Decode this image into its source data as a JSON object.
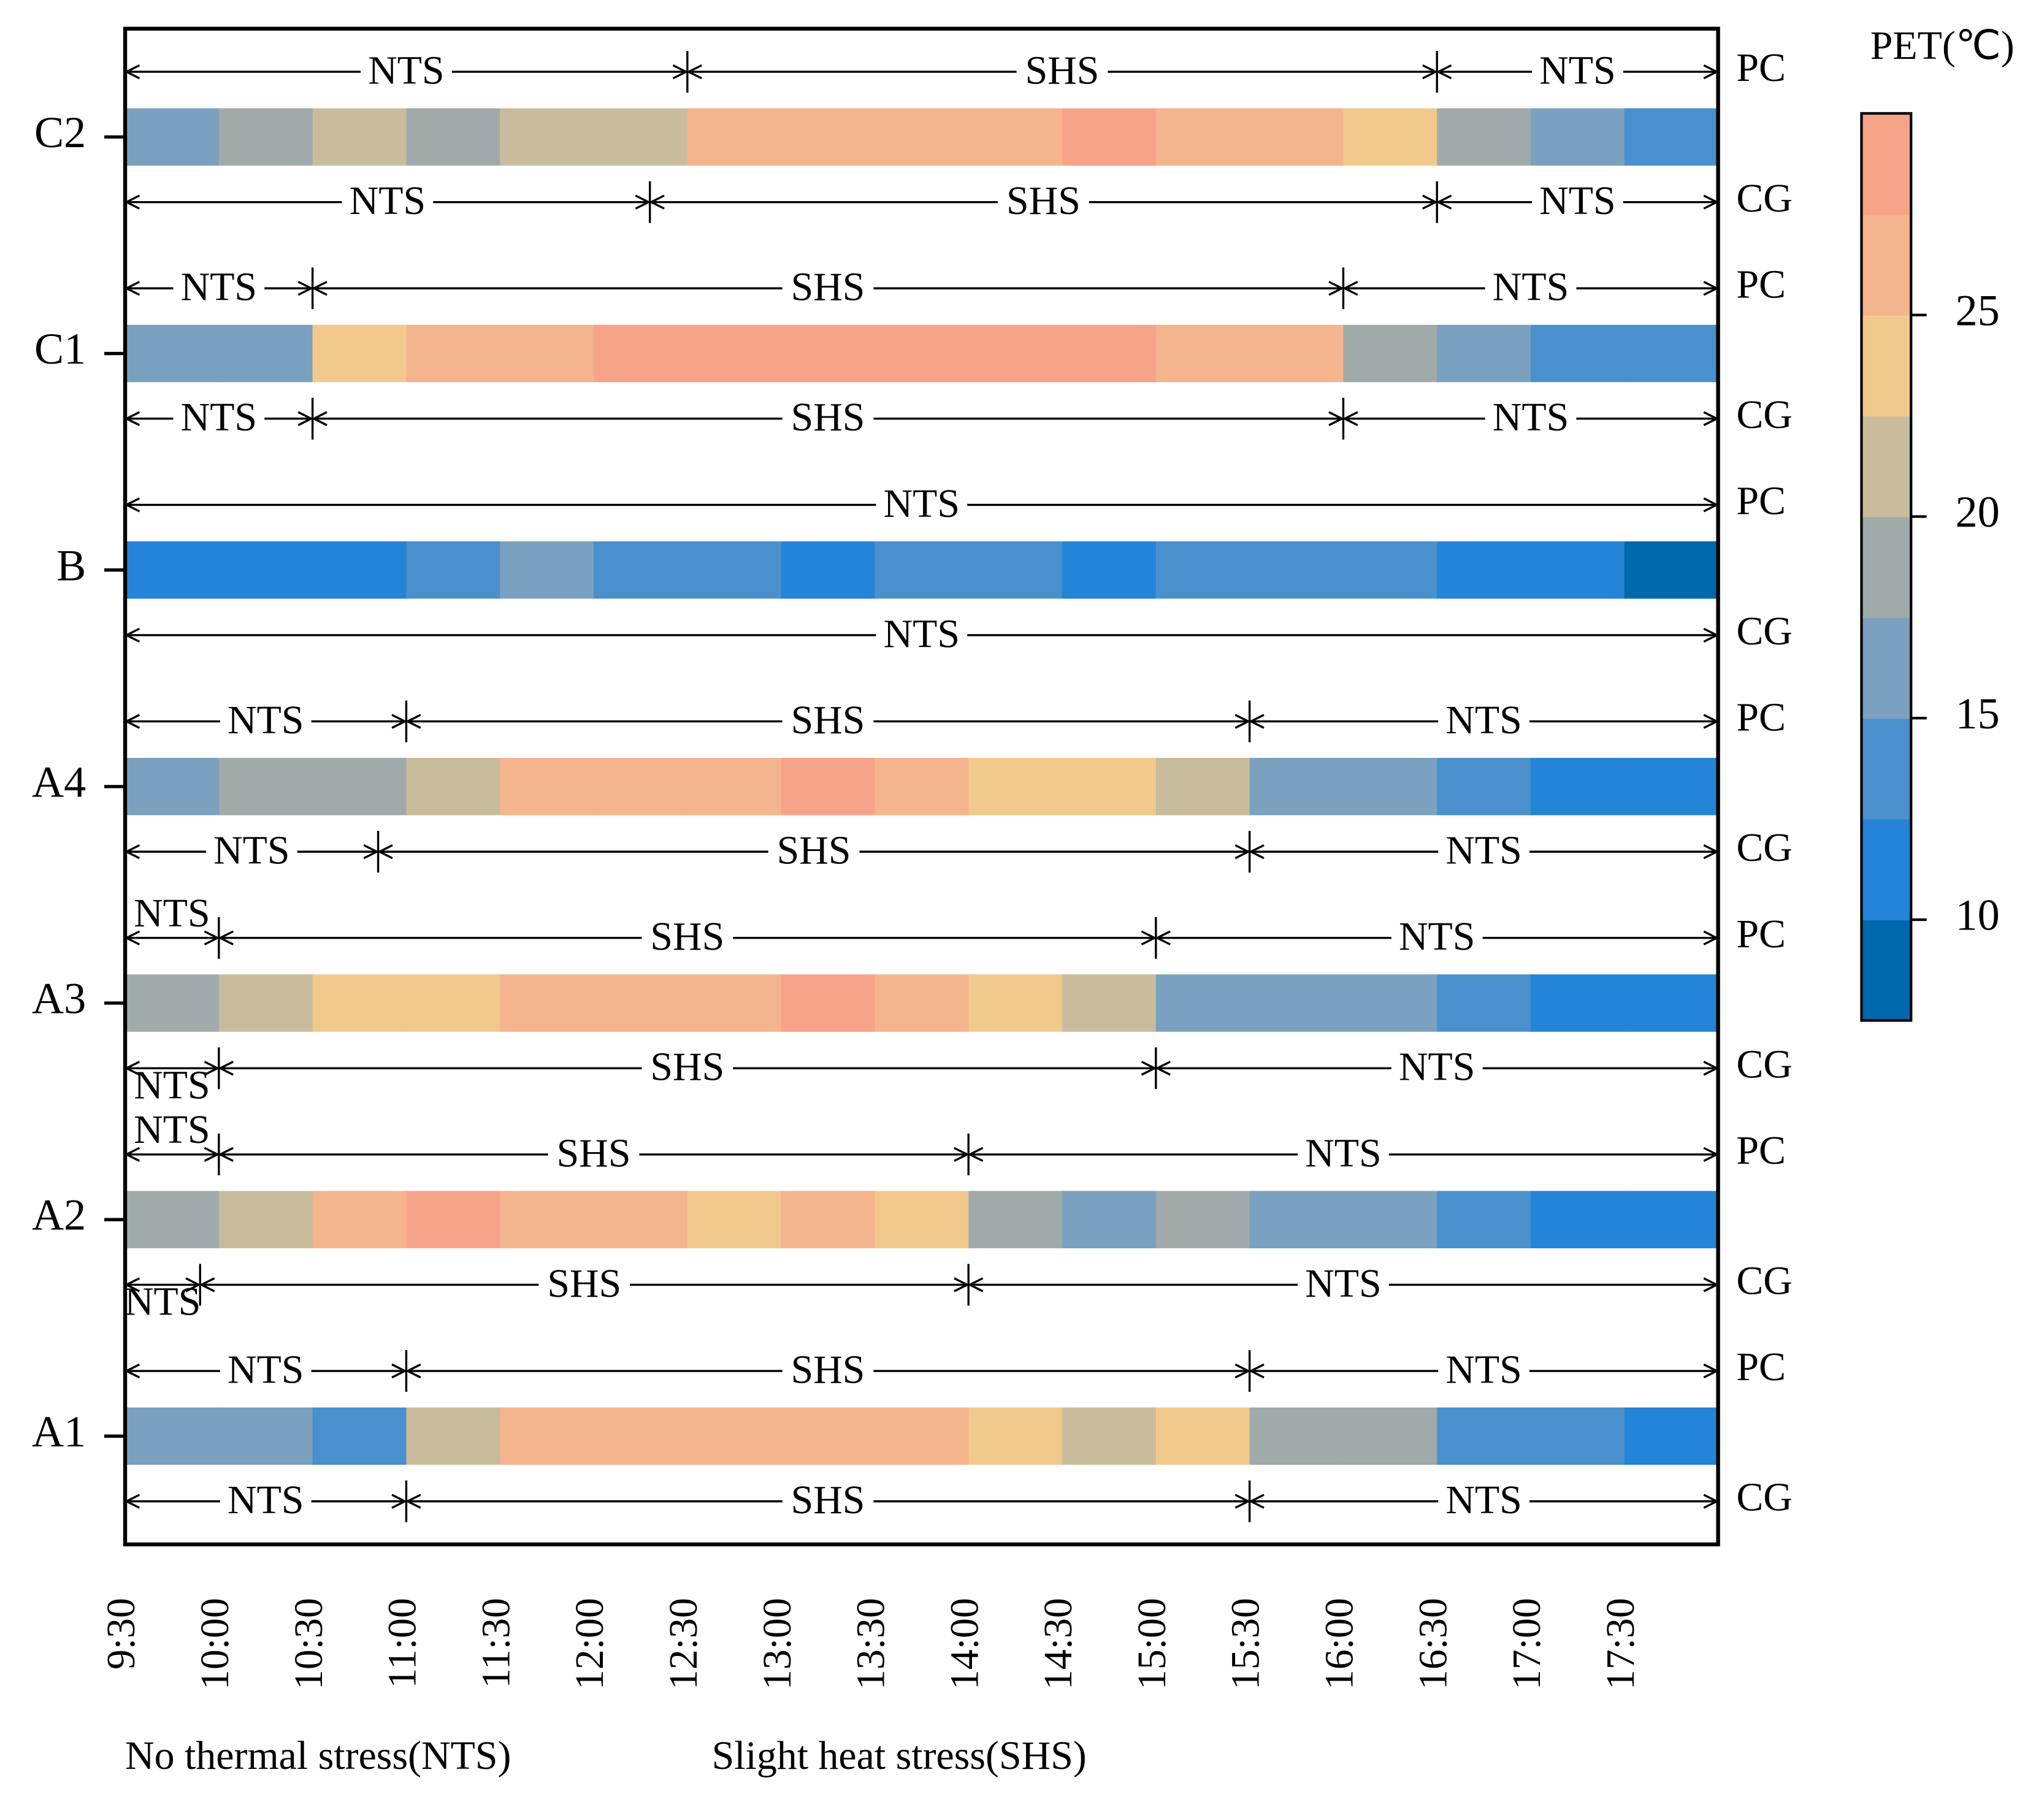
{
  "chart_data": {
    "type": "heatmap",
    "xlim": [
      9.5,
      18
    ],
    "xticks": [
      {
        "value": 9.5,
        "label": "9:30"
      },
      {
        "value": 10,
        "label": "10:00"
      },
      {
        "value": 10.5,
        "label": "10:30"
      },
      {
        "value": 11,
        "label": "11:00"
      },
      {
        "value": 11.5,
        "label": "11:30"
      },
      {
        "value": 12,
        "label": "12:00"
      },
      {
        "value": 12.5,
        "label": "12:30"
      },
      {
        "value": 13,
        "label": "13:00"
      },
      {
        "value": 13.5,
        "label": "13:30"
      },
      {
        "value": 14,
        "label": "14:00"
      },
      {
        "value": 14.5,
        "label": "14:30"
      },
      {
        "value": 15,
        "label": "15:00"
      },
      {
        "value": 15.5,
        "label": "15:30"
      },
      {
        "value": 16,
        "label": "16:00"
      },
      {
        "value": 16.5,
        "label": "16:30"
      },
      {
        "value": 17,
        "label": "17:00"
      },
      {
        "value": 17.5,
        "label": "17:30"
      }
    ],
    "bins": [
      9.5,
      10,
      10.5,
      11,
      11.5,
      12,
      12.5,
      13,
      13.5,
      14,
      14.5,
      15,
      15.5,
      16,
      16.5,
      17,
      17.5,
      18
    ],
    "rows": [
      {
        "name": "C2",
        "values": [
          16.25,
          18.75,
          21.25,
          18.75,
          21.25,
          21.25,
          26.25,
          26.25,
          26.25,
          26.25,
          28.75,
          26.25,
          26.25,
          23.75,
          18.75,
          16.25,
          13.75
        ],
        "bands": [
          {
            "name": "PC",
            "segments": [
              {
                "label": "NTS",
                "start": 9.5,
                "end": 12.5
              },
              {
                "label": "SHS",
                "start": 12.5,
                "end": 16.5
              },
              {
                "label": "NTS",
                "start": 16.5,
                "end": 18
              }
            ]
          },
          {
            "name": "CG",
            "segments": [
              {
                "label": "NTS",
                "start": 9.5,
                "end": 12.3
              },
              {
                "label": "SHS",
                "start": 12.3,
                "end": 16.5
              },
              {
                "label": "NTS",
                "start": 16.5,
                "end": 18
              }
            ]
          }
        ]
      },
      {
        "name": "C1",
        "values": [
          16.25,
          16.25,
          23.75,
          26.25,
          26.25,
          28.75,
          28.75,
          28.75,
          28.75,
          28.75,
          28.75,
          26.25,
          26.25,
          18.75,
          16.25,
          13.75,
          13.75
        ],
        "bands": [
          {
            "name": "PC",
            "segments": [
              {
                "label": "NTS",
                "start": 9.5,
                "end": 10.5
              },
              {
                "label": "SHS",
                "start": 10.5,
                "end": 16
              },
              {
                "label": "NTS",
                "start": 16,
                "end": 18
              }
            ]
          },
          {
            "name": "CG",
            "segments": [
              {
                "label": "NTS",
                "start": 9.5,
                "end": 10.5
              },
              {
                "label": "SHS",
                "start": 10.5,
                "end": 16
              },
              {
                "label": "NTS",
                "start": 16,
                "end": 18
              }
            ]
          }
        ]
      },
      {
        "name": "B",
        "values": [
          11.25,
          11.25,
          11.25,
          13.75,
          16.25,
          13.75,
          13.75,
          11.25,
          13.75,
          13.75,
          11.25,
          13.75,
          13.75,
          13.75,
          11.25,
          11.25,
          8.75
        ],
        "bands": [
          {
            "name": "PC",
            "segments": [
              {
                "label": "NTS",
                "start": 9.5,
                "end": 18
              }
            ]
          },
          {
            "name": "CG",
            "segments": [
              {
                "label": "NTS",
                "start": 9.5,
                "end": 18
              }
            ]
          }
        ]
      },
      {
        "name": "A4",
        "values": [
          16.25,
          18.75,
          18.75,
          21.25,
          26.25,
          26.25,
          26.25,
          28.75,
          26.25,
          23.75,
          23.75,
          21.25,
          16.25,
          16.25,
          13.75,
          11.25,
          11.25
        ],
        "bands": [
          {
            "name": "PC",
            "segments": [
              {
                "label": "NTS",
                "start": 9.5,
                "end": 11
              },
              {
                "label": "SHS",
                "start": 11,
                "end": 15.5
              },
              {
                "label": "NTS",
                "start": 15.5,
                "end": 18
              }
            ]
          },
          {
            "name": "CG",
            "segments": [
              {
                "label": "NTS",
                "start": 9.5,
                "end": 10.85
              },
              {
                "label": "SHS",
                "start": 10.85,
                "end": 15.5
              },
              {
                "label": "NTS",
                "start": 15.5,
                "end": 18
              }
            ]
          }
        ]
      },
      {
        "name": "A3",
        "values": [
          18.75,
          21.25,
          23.75,
          23.75,
          26.25,
          26.25,
          26.25,
          28.75,
          26.25,
          23.75,
          21.25,
          16.25,
          16.25,
          16.25,
          13.75,
          11.25,
          11.25
        ],
        "bands": [
          {
            "name": "PC",
            "segments": [
              {
                "label": "NTS",
                "start": 9.5,
                "end": 10
              },
              {
                "label": "SHS",
                "start": 10,
                "end": 15
              },
              {
                "label": "NTS",
                "start": 15,
                "end": 18
              }
            ]
          },
          {
            "name": "CG",
            "segments": [
              {
                "label": "NTS",
                "start": 9.5,
                "end": 10
              },
              {
                "label": "SHS",
                "start": 10,
                "end": 15
              },
              {
                "label": "NTS",
                "start": 15,
                "end": 18
              }
            ]
          }
        ]
      },
      {
        "name": "A2",
        "values": [
          18.75,
          21.25,
          26.25,
          28.75,
          26.25,
          26.25,
          23.75,
          26.25,
          23.75,
          18.75,
          16.25,
          18.75,
          16.25,
          16.25,
          13.75,
          11.25,
          11.25
        ],
        "bands": [
          {
            "name": "PC",
            "segments": [
              {
                "label": "NTS",
                "start": 9.5,
                "end": 10
              },
              {
                "label": "SHS",
                "start": 10,
                "end": 14
              },
              {
                "label": "NTS",
                "start": 14,
                "end": 18
              }
            ]
          },
          {
            "name": "CG",
            "segments": [
              {
                "label": "NTS",
                "start": 9.5,
                "end": 9.9
              },
              {
                "label": "SHS",
                "start": 9.9,
                "end": 14
              },
              {
                "label": "NTS",
                "start": 14,
                "end": 18
              }
            ]
          }
        ]
      },
      {
        "name": "A1",
        "values": [
          16.25,
          16.25,
          13.75,
          21.25,
          26.25,
          26.25,
          26.25,
          26.25,
          26.25,
          23.75,
          21.25,
          23.75,
          18.75,
          18.75,
          13.75,
          13.75,
          11.25
        ],
        "bands": [
          {
            "name": "PC",
            "segments": [
              {
                "label": "NTS",
                "start": 9.5,
                "end": 11
              },
              {
                "label": "SHS",
                "start": 11,
                "end": 15.5
              },
              {
                "label": "NTS",
                "start": 15.5,
                "end": 18
              }
            ]
          },
          {
            "name": "CG",
            "segments": [
              {
                "label": "NTS",
                "start": 9.5,
                "end": 11
              },
              {
                "label": "SHS",
                "start": 11,
                "end": 15.5
              },
              {
                "label": "NTS",
                "start": 15.5,
                "end": 18
              }
            ]
          }
        ]
      }
    ],
    "colorbar": {
      "title": "PET(℃)",
      "clim": [
        7.5,
        30
      ],
      "ticks": [
        10,
        15,
        20,
        25
      ],
      "colors": [
        "#0068ad",
        "#2484d8",
        "#4a90cc",
        "#7aa1bf",
        "#a0aaaa",
        "#c9bc9c",
        "#f2c98c",
        "#f4b48e",
        "#f7a38a"
      ]
    },
    "legend": [
      "No thermal stress(NTS)",
      "Slight heat stress(SHS)"
    ]
  }
}
